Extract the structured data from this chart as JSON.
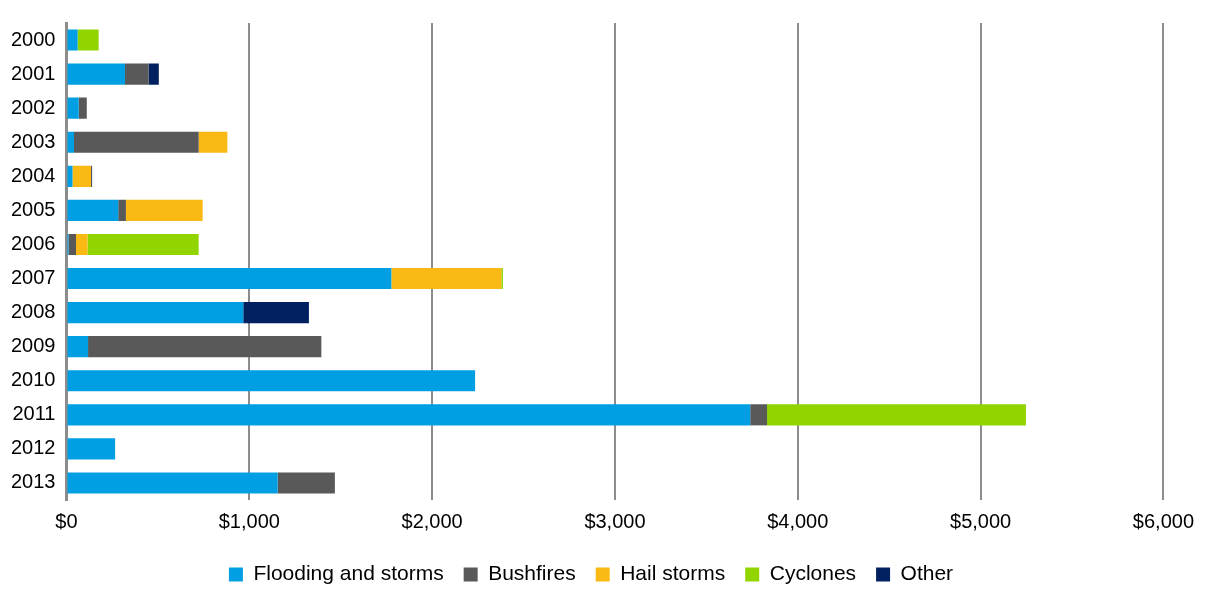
{
  "chart_data": {
    "type": "bar",
    "orientation": "horizontal",
    "stacked": true,
    "categories": [
      "2000",
      "2001",
      "2002",
      "2003",
      "2004",
      "2005",
      "2006",
      "2007",
      "2008",
      "2009",
      "2010",
      "2011",
      "2012",
      "2013"
    ],
    "series": [
      {
        "name": "Flooding and storms",
        "color": "#009fe3",
        "values": [
          61,
          320,
          67,
          41,
          33,
          283,
          11,
          1777,
          967,
          118,
          2235,
          3740,
          266,
          1155
        ]
      },
      {
        "name": "Bushfires",
        "color": "#595959",
        "values": [
          null,
          129,
          44,
          682,
          null,
          42,
          41,
          null,
          null,
          1276,
          null,
          92,
          null,
          313
        ]
      },
      {
        "name": "Hail storms",
        "color": "#fbb913",
        "values": [
          null,
          null,
          null,
          157,
          102,
          420,
          63,
          601,
          null,
          null,
          null,
          null,
          null,
          null
        ]
      },
      {
        "name": "Cyclones",
        "color": "#92d400",
        "values": [
          115,
          null,
          null,
          null,
          null,
          null,
          608,
          9,
          null,
          null,
          null,
          1416,
          null,
          null
        ]
      },
      {
        "name": "Other",
        "color": "#002060",
        "values": [
          null,
          56,
          null,
          null,
          5,
          null,
          null,
          null,
          359,
          null,
          null,
          null,
          null,
          null
        ]
      }
    ],
    "xlim": [
      0,
      6000
    ],
    "xticks": [
      {
        "value": 0,
        "label": "$0"
      },
      {
        "value": 1000,
        "label": "$1,000"
      },
      {
        "value": 2000,
        "label": "$2,000"
      },
      {
        "value": 3000,
        "label": "$3,000"
      },
      {
        "value": 4000,
        "label": "$4,000"
      },
      {
        "value": 5000,
        "label": "$5,000"
      },
      {
        "value": 6000,
        "label": "$6,000"
      }
    ],
    "grid": "x",
    "legend": "bottom"
  }
}
